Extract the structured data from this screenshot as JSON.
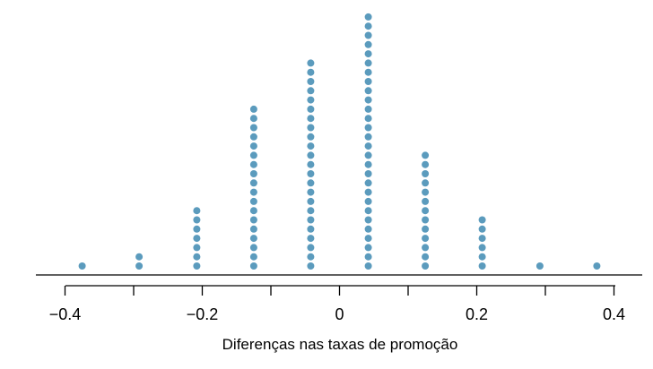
{
  "chart_data": {
    "type": "scatter",
    "subtype": "dot-plot",
    "title": "",
    "xlabel": "Diferenças nas taxas de promoção",
    "ylabel": "",
    "xlim": [
      -0.42,
      0.43
    ],
    "grid": false,
    "legend": "none",
    "dot_color": "#5b9bbd",
    "x_ticks": [
      -0.4,
      -0.2,
      0,
      0.2,
      0.4
    ],
    "x_minor_ticks": [
      -0.3,
      -0.1,
      0.1,
      0.3
    ],
    "x_tick_labels": [
      "−0.4",
      "−0.2",
      "0",
      "0.2",
      "0.4"
    ],
    "series": [
      {
        "x": [
          -0.375,
          -0.292,
          -0.208,
          -0.125,
          -0.042,
          0.042,
          0.125,
          0.208,
          0.292,
          0.375
        ],
        "counts": [
          1,
          2,
          7,
          18,
          23,
          28,
          13,
          6,
          1,
          1
        ]
      }
    ]
  }
}
